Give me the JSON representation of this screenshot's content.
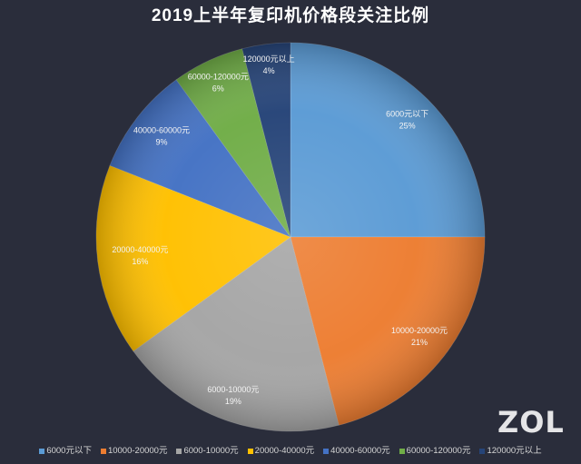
{
  "chart_data": {
    "type": "pie",
    "title": "2019上半年复印机价格段关注比例",
    "categories": [
      "6000元以下",
      "10000-20000元",
      "6000-10000元",
      "20000-40000元",
      "40000-60000元",
      "60000-120000元",
      "120000元以上"
    ],
    "values": [
      25,
      21,
      19,
      16,
      9,
      6,
      4
    ],
    "data_labels": [
      "25%",
      "21%",
      "19%",
      "16%",
      "9%",
      "6%",
      "4%"
    ],
    "colors": [
      "#5b9bd5",
      "#ed7d31",
      "#a5a5a5",
      "#ffc000",
      "#4472c4",
      "#70ad47",
      "#264478"
    ],
    "legend_position": "bottom"
  },
  "watermark": {
    "logo": "ZOL"
  }
}
